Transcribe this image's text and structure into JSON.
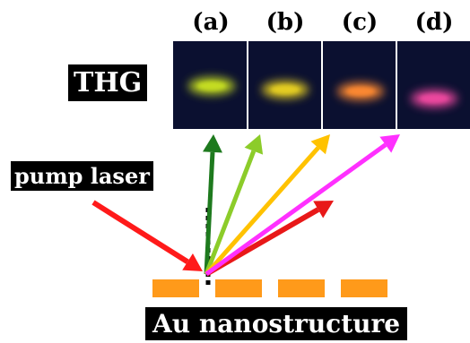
{
  "panels": [
    {
      "label": "(a)",
      "spot_color": "#c8e020"
    },
    {
      "label": "(b)",
      "spot_color": "#e8d020"
    },
    {
      "label": "(c)",
      "spot_color": "#ff8a30"
    },
    {
      "label": "(d)",
      "spot_color": "#f04aa0"
    }
  ],
  "labels": {
    "thg": "THG",
    "pump": "pump laser",
    "substrate": "Au nanostructure"
  },
  "arrows": {
    "pump_color": "#ff1a1a",
    "reflected_color": "#e81818",
    "emission_colors": [
      "#1e7a1e",
      "#8ccc2a",
      "#ffc200",
      "#ff30ff"
    ]
  },
  "substrate_color": "#ff9a1a"
}
